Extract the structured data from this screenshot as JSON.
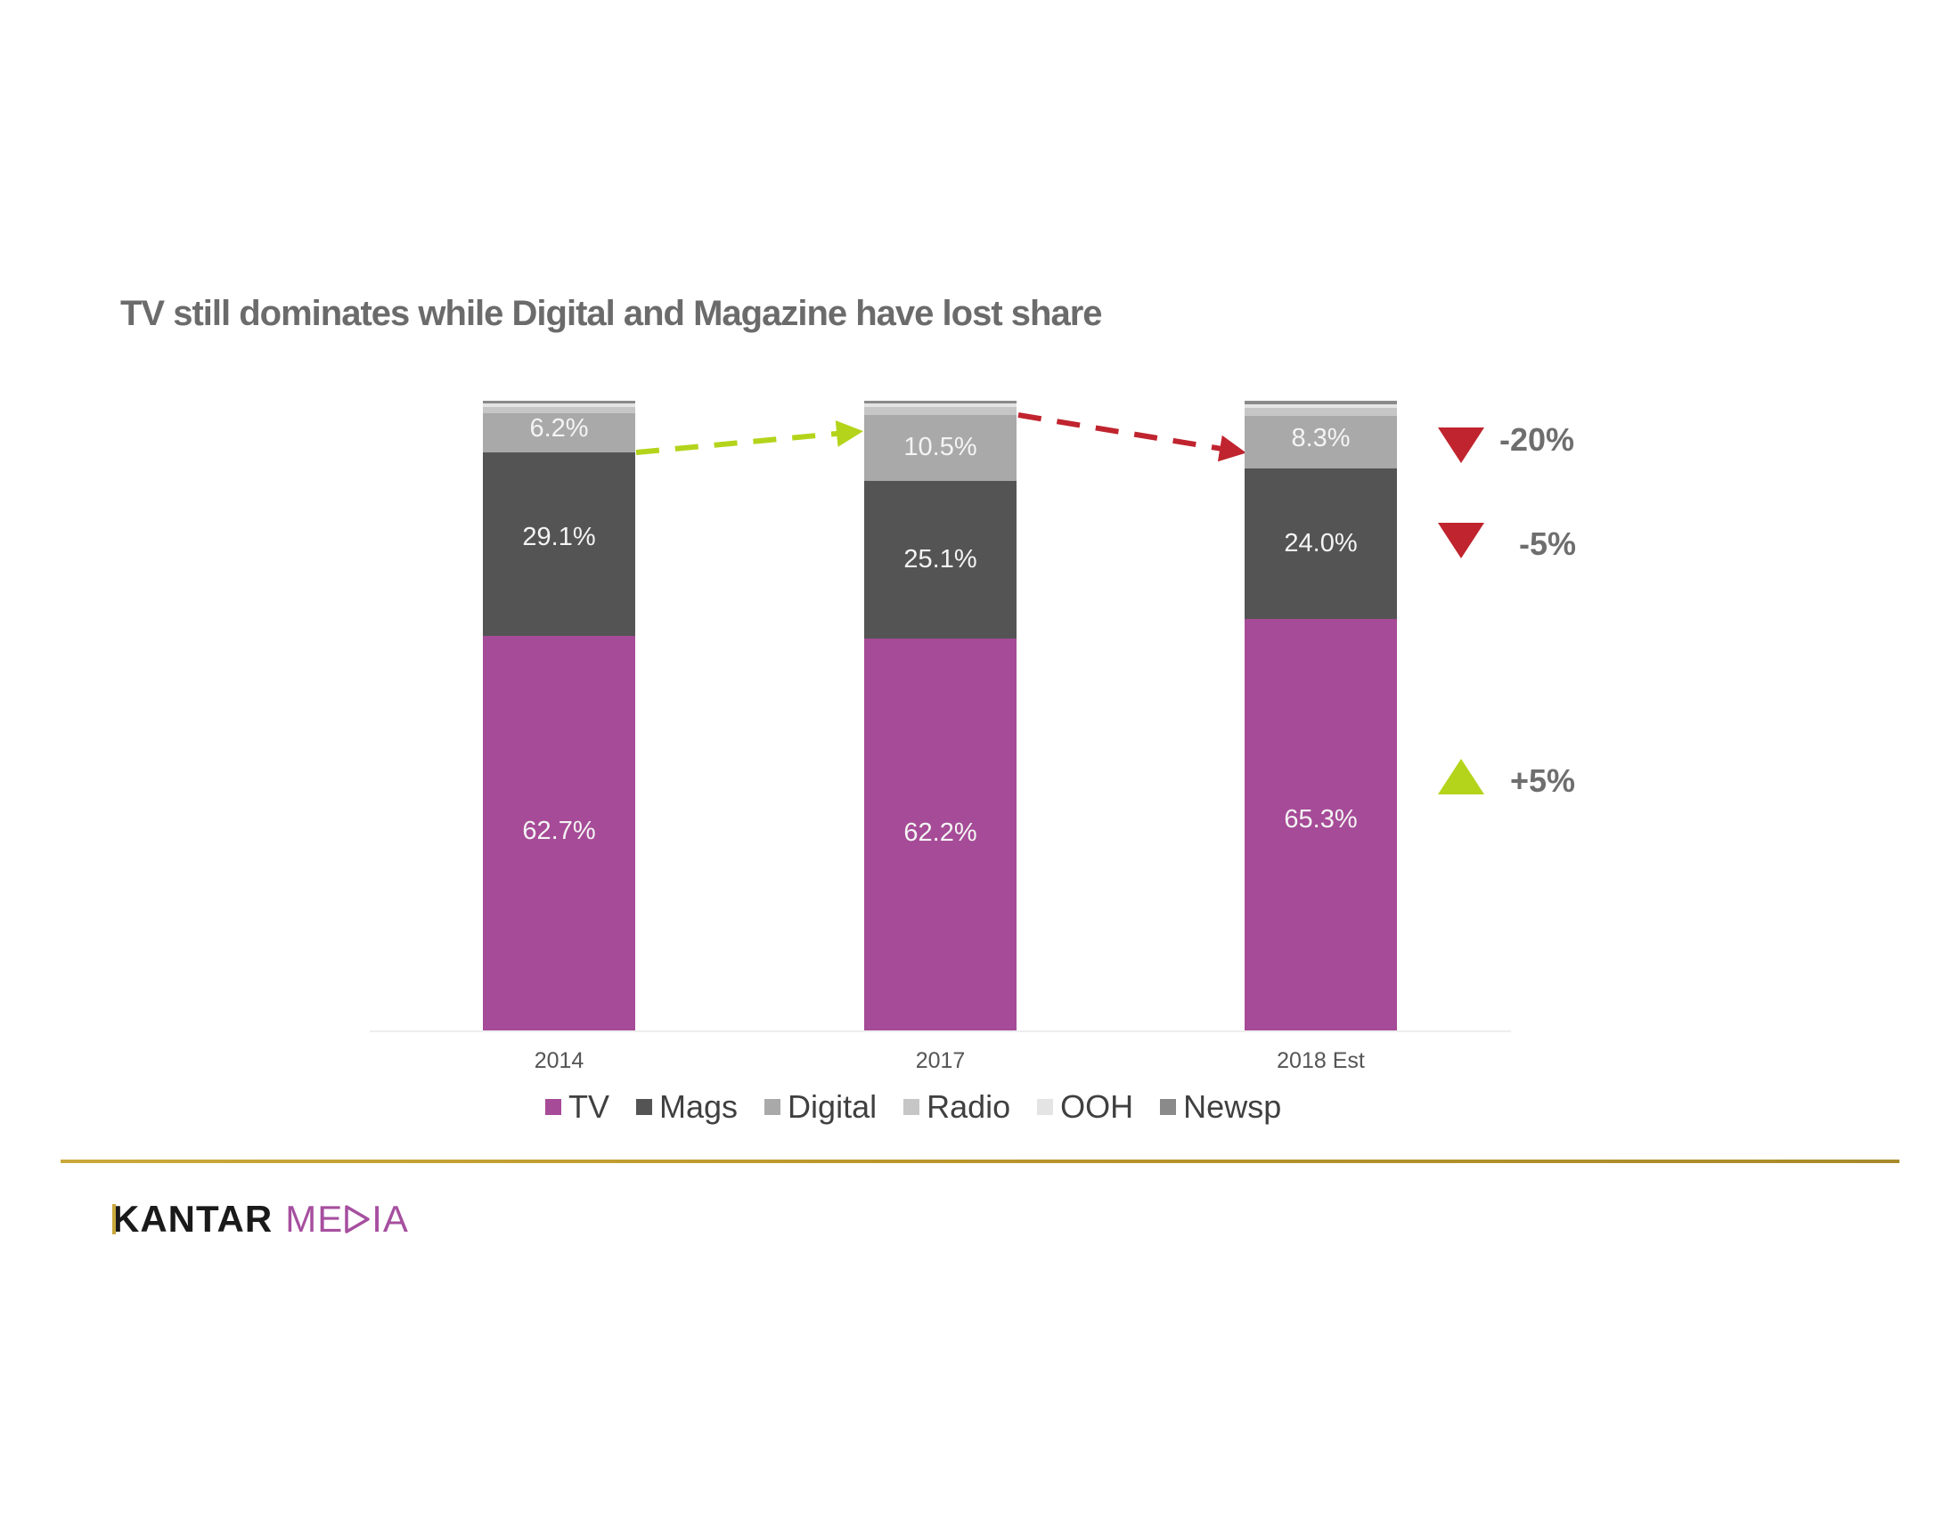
{
  "slide": {
    "title": "TV still dominates while Digital and Magazine have lost share",
    "logo": {
      "brand": "KANTAR",
      "sub_before": "ME",
      "sub_after": "IA"
    },
    "colors": {
      "tv": "#a64b97",
      "mags": "#545454",
      "digital": "#a9a9a9",
      "radio": "#c6c6c6",
      "ooh": "#e4e4e4",
      "newsp": "#8a8a8a",
      "down": "#c0242e",
      "up": "#b3d41a",
      "gold": "#c0a030"
    }
  },
  "chart_data": {
    "type": "bar",
    "stacked": true,
    "title": "TV still dominates while Digital and Magazine have lost share",
    "xlabel": "",
    "ylabel": "",
    "ylim": [
      0,
      100
    ],
    "grid": false,
    "legend_position": "bottom",
    "categories": [
      "2014",
      "2017",
      "2018 Est"
    ],
    "series": [
      {
        "name": "TV",
        "values": [
          62.7,
          62.2,
          65.3
        ],
        "labels": [
          "62.7%",
          "62.2%",
          "65.3%"
        ]
      },
      {
        "name": "Mags",
        "values": [
          29.1,
          25.1,
          24.0
        ],
        "labels": [
          "29.1%",
          "25.1%",
          "24.0%"
        ]
      },
      {
        "name": "Digital",
        "values": [
          6.2,
          10.5,
          8.3
        ],
        "labels": [
          "6.2%",
          "10.5%",
          "8.3%"
        ]
      },
      {
        "name": "Radio",
        "values": [
          1.0,
          1.2,
          1.3
        ],
        "labels": [
          "",
          "",
          ""
        ]
      },
      {
        "name": "OOH",
        "values": [
          0.6,
          0.6,
          0.6
        ],
        "labels": [
          "",
          "",
          ""
        ]
      },
      {
        "name": "Newsp",
        "values": [
          0.4,
          0.4,
          0.5
        ],
        "labels": [
          "",
          "",
          ""
        ]
      }
    ],
    "legend": [
      "TV",
      "Mags",
      "Digital",
      "Radio",
      "OOH",
      "Newsp"
    ],
    "annotations": [
      {
        "type": "arrow",
        "from": "2014 Digital",
        "to": "2017 Digital",
        "color": "#b3d41a",
        "style": "dashed"
      },
      {
        "type": "arrow",
        "from": "2017 Digital",
        "to": "2018 Est Digital",
        "color": "#c0242e",
        "style": "dashed"
      },
      {
        "type": "change",
        "series": "Digital",
        "direction": "down",
        "text": "-20%"
      },
      {
        "type": "change",
        "series": "Mags",
        "direction": "down",
        "text": "-5%"
      },
      {
        "type": "change",
        "series": "TV",
        "direction": "up",
        "text": "+5%"
      }
    ]
  },
  "indicators": [
    {
      "direction": "down",
      "text": "-20%"
    },
    {
      "direction": "down",
      "text": "-5%"
    },
    {
      "direction": "up",
      "text": "+5%"
    }
  ]
}
